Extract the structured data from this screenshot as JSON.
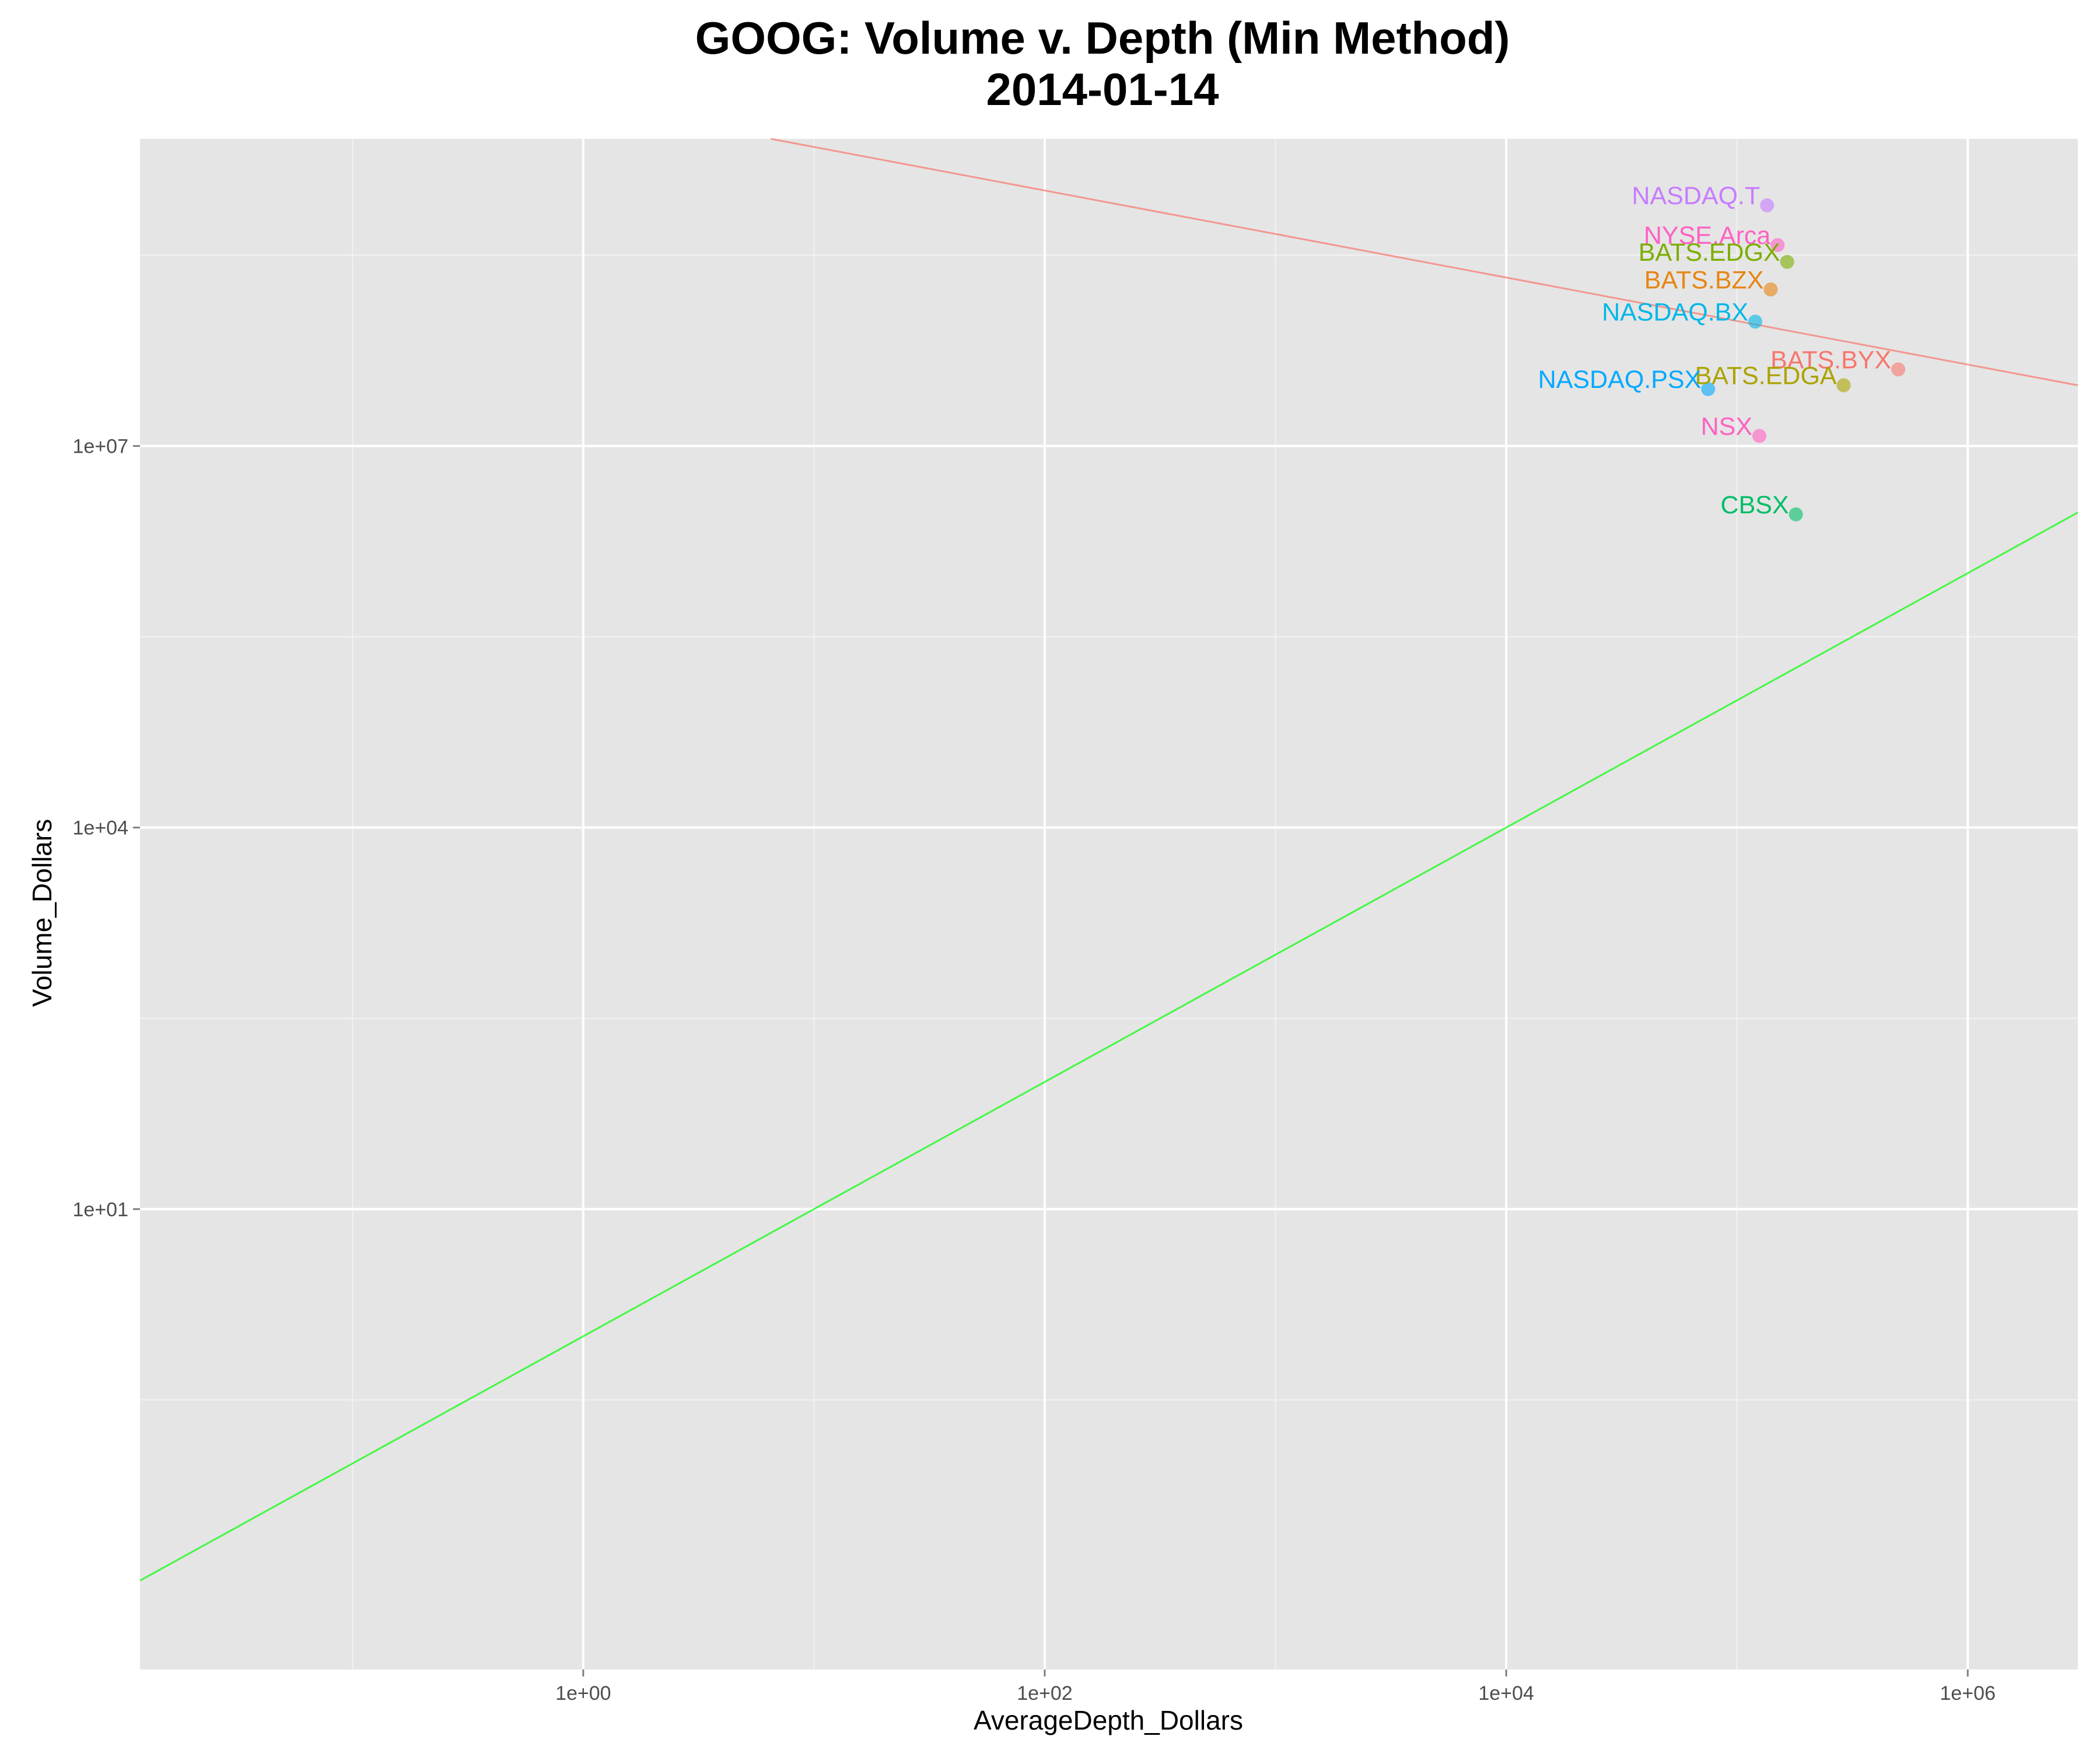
{
  "chart_data": {
    "type": "scatter",
    "title": "GOOG: Volume v. Depth (Min Method)",
    "subtitle": "2014-01-14",
    "xlabel": "AverageDepth_Dollars",
    "ylabel": "Volume_Dollars",
    "x_scale": "log10",
    "y_scale": "log10",
    "xlim": [
      0.012,
      3000000
    ],
    "ylim": [
      0.0024,
      2600000000.0
    ],
    "x_ticks": [
      {
        "value": 1,
        "label": "1e+00"
      },
      {
        "value": 100,
        "label": "1e+02"
      },
      {
        "value": 10000,
        "label": "1e+04"
      },
      {
        "value": 1000000,
        "label": "1e+06"
      }
    ],
    "y_ticks": [
      {
        "value": 10,
        "label": "1e+01"
      },
      {
        "value": 10000,
        "label": "1e+04"
      },
      {
        "value": 10000000,
        "label": "1e+07"
      }
    ],
    "grid": true,
    "legend": "none",
    "points": [
      {
        "label": "NASDAQ.T",
        "x": 135000,
        "y": 780000000.0,
        "color": "#C77CFF"
      },
      {
        "label": "NYSE.Arca",
        "x": 150000,
        "y": 380000000.0,
        "color": "#FF61C3"
      },
      {
        "label": "BATS.EDGX",
        "x": 165000,
        "y": 280000000.0,
        "color": "#7CAE00"
      },
      {
        "label": "BATS.BZX",
        "x": 140000,
        "y": 170000000.0,
        "color": "#E68613"
      },
      {
        "label": "NASDAQ.BX",
        "x": 120000,
        "y": 95000000.0,
        "color": "#00B8E7"
      },
      {
        "label": "BATS.BYX",
        "x": 500000,
        "y": 40000000.0,
        "color": "#F8766D"
      },
      {
        "label": "BATS.EDGA",
        "x": 290000,
        "y": 30000000.0,
        "color": "#ABA300"
      },
      {
        "label": "NASDAQ.PSX",
        "x": 75000,
        "y": 28000000.0,
        "color": "#00A9FF"
      },
      {
        "label": "NSX",
        "x": 125000,
        "y": 12000000.0,
        "color": "#FF61C3"
      },
      {
        "label": "CBSX",
        "x": 180000,
        "y": 2900000.0,
        "color": "#00BE67"
      }
    ],
    "lines": [
      {
        "color": "#F8766D",
        "from": {
          "x": 6.5,
          "y": 2600000000.0
        },
        "to": {
          "x": 3000000,
          "y": 30000000.0
        }
      },
      {
        "color": "#00FF00",
        "from": {
          "x": 0.012,
          "y": 0.012
        },
        "to": {
          "x": 3000000,
          "y": 3000000
        }
      }
    ]
  }
}
